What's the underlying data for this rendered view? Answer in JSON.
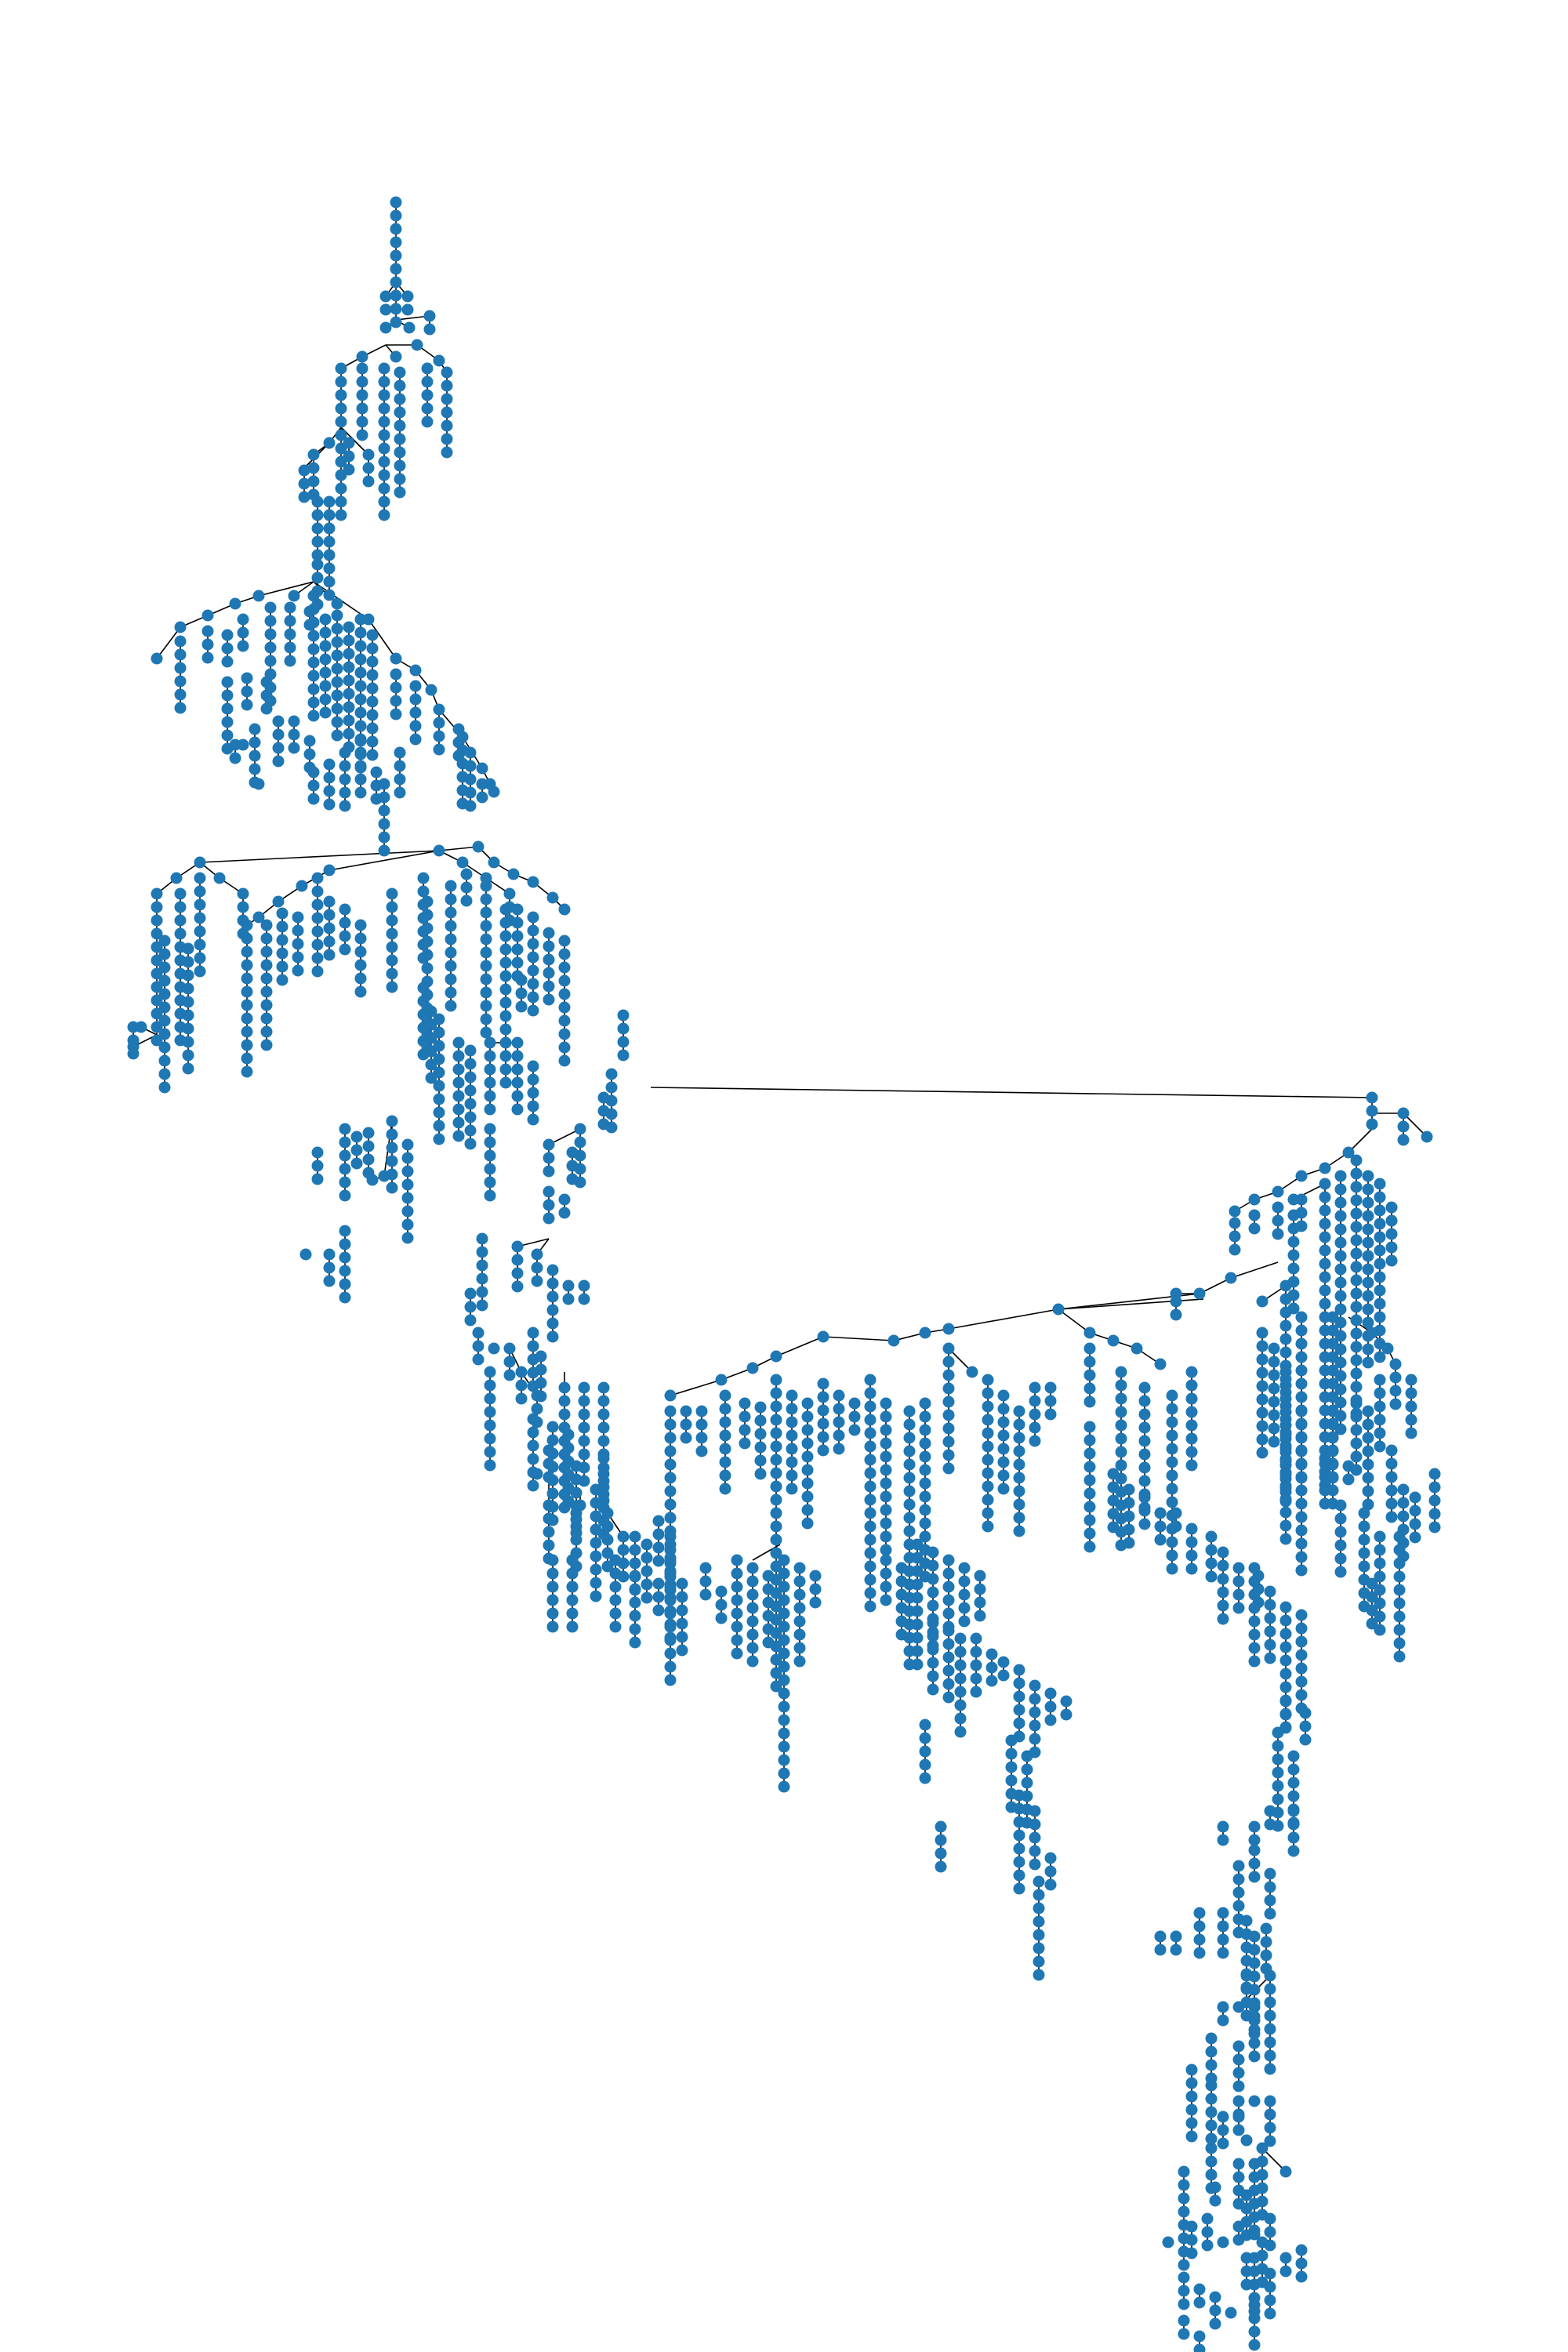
{
  "figure": {
    "kind": "directed tree graph",
    "node_color": "#1f77b4",
    "edge_color": "#000000",
    "background": "#ffffff",
    "labels_shown": false,
    "arrowheads": true
  }
}
